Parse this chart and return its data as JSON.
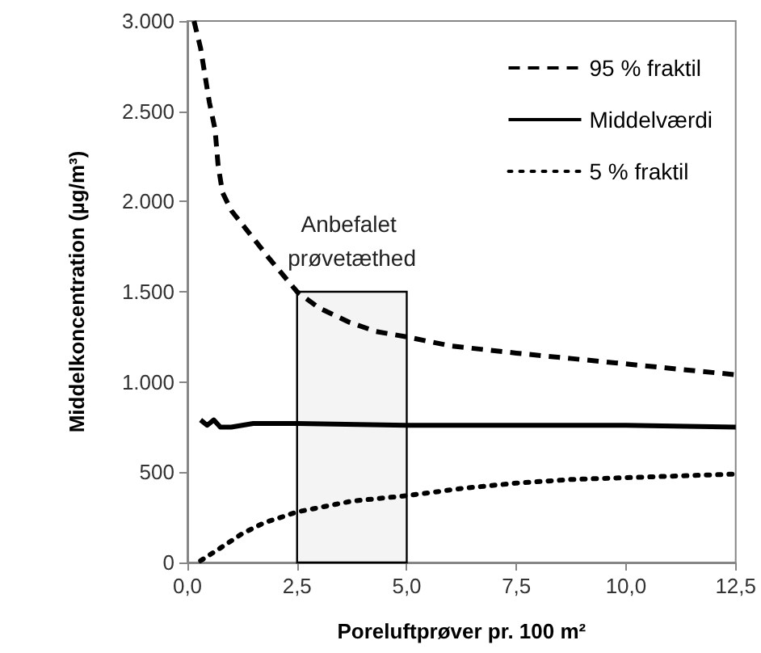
{
  "chart_data": {
    "type": "line",
    "xlabel": "Poreluftprøver pr. 100 m²",
    "ylabel": "Middelkoncentration (µg/m³)",
    "xlim": [
      0,
      12.5
    ],
    "xticks": [
      {
        "value": 0,
        "label": "0,0"
      },
      {
        "value": 2.5,
        "label": "2,5"
      },
      {
        "value": 5,
        "label": "5,0"
      },
      {
        "value": 7.5,
        "label": "7,5"
      },
      {
        "value": 10,
        "label": "10,0"
      },
      {
        "value": 12.5,
        "label": "12,5"
      }
    ],
    "ylim": [
      0,
      3000
    ],
    "yticks": [
      0,
      500,
      {
        "value": 1000,
        "label": "1.000"
      },
      {
        "value": 1500,
        "label": "1.500"
      },
      {
        "value": 2000,
        "label": "2.000"
      },
      {
        "value": 2500,
        "label": "2.500"
      },
      {
        "value": 3000,
        "label": "3.000"
      }
    ],
    "grid": false,
    "legend": "top right",
    "marker": "none",
    "bands": [
      {
        "axis": "x",
        "from": 2.5,
        "to": 5,
        "label": "Anbefalet prøvetæthed",
        "color": "#f4f4f4"
      }
    ],
    "series": [
      {
        "name": "95 % fraktil",
        "color": "#000000",
        "line_style": "dashed",
        "x": [
          0.15,
          0.3,
          0.4,
          0.5,
          0.63,
          0.7,
          0.8,
          1.0,
          1.36,
          1.88,
          2.5,
          3.0,
          3.7,
          4.3,
          5.0,
          6.0,
          7.5,
          8.75,
          10,
          11.25,
          12.5
        ],
        "values": [
          3000,
          2850,
          2700,
          2550,
          2400,
          2200,
          2050,
          1950,
          1840,
          1680,
          1500,
          1410,
          1330,
          1280,
          1250,
          1200,
          1160,
          1130,
          1100,
          1070,
          1040
        ]
      },
      {
        "name": "Middelværdi",
        "color": "#000000",
        "line_style": "solid",
        "x": [
          0.3,
          0.45,
          0.6,
          0.75,
          1.0,
          1.5,
          2.5,
          5,
          7.5,
          10,
          12.5
        ],
        "values": [
          790,
          760,
          790,
          750,
          750,
          770,
          770,
          760,
          760,
          760,
          750
        ]
      },
      {
        "name": "5 % fraktil",
        "color": "#000000",
        "line_style": "dotted",
        "x": [
          0.3,
          0.75,
          1.25,
          1.75,
          2.5,
          3.75,
          5,
          6.25,
          7.5,
          8.75,
          10,
          11.25,
          12.5
        ],
        "values": [
          10,
          80,
          160,
          220,
          280,
          340,
          370,
          410,
          440,
          460,
          470,
          480,
          490
        ]
      }
    ]
  }
}
